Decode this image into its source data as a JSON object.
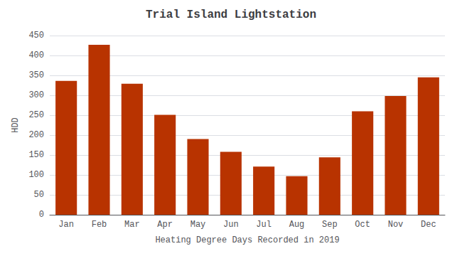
{
  "chart_data": {
    "type": "bar",
    "title": "Trial Island Lightstation",
    "xlabel": "Heating Degree Days Recorded in 2019",
    "ylabel": "HDD",
    "categories": [
      "Jan",
      "Feb",
      "Mar",
      "Apr",
      "May",
      "Jun",
      "Jul",
      "Aug",
      "Sep",
      "Oct",
      "Nov",
      "Dec"
    ],
    "values": [
      336,
      427,
      329,
      251,
      190,
      158,
      121,
      97,
      144,
      260,
      298,
      345
    ],
    "color": "#b83300",
    "ylim": [
      0,
      450
    ],
    "yticks": [
      0,
      50,
      100,
      150,
      200,
      250,
      300,
      350,
      400,
      450
    ],
    "grid": true
  }
}
